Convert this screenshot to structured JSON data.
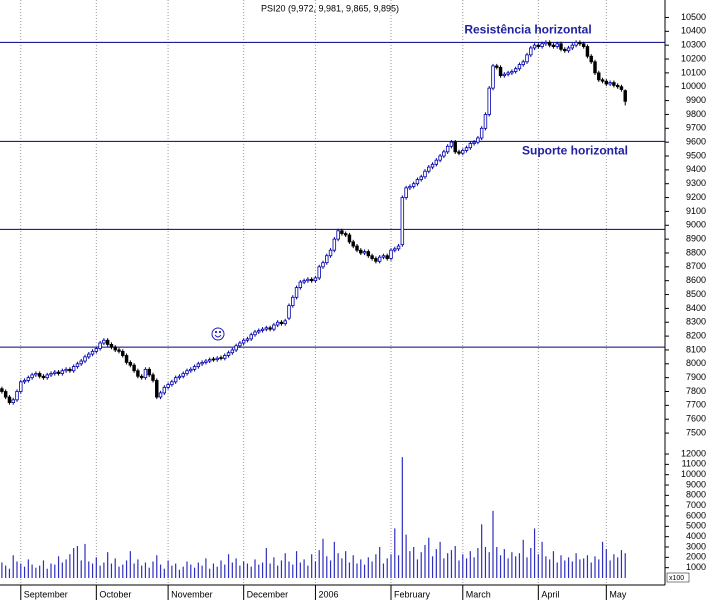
{
  "chart_data": {
    "type": "candlestick",
    "title": "PSI20 (9,972, 9,981, 9,865, 9,895)",
    "xlim": [
      -0.5,
      175
    ],
    "xticks": [
      {
        "value": 5,
        "label": "September"
      },
      {
        "value": 25,
        "label": "October"
      },
      {
        "value": 44,
        "label": "November"
      },
      {
        "value": 64,
        "label": "December"
      },
      {
        "value": 83,
        "label": "2006"
      },
      {
        "value": 103,
        "label": "February"
      },
      {
        "value": 122,
        "label": "March"
      },
      {
        "value": 142,
        "label": "April"
      },
      {
        "value": 160,
        "label": "May"
      }
    ],
    "ylim": [
      7450,
      10590
    ],
    "yticks": [
      7500,
      7600,
      7700,
      7800,
      7900,
      8000,
      8100,
      8200,
      8300,
      8400,
      8500,
      8600,
      8700,
      8800,
      8900,
      9000,
      9100,
      9200,
      9300,
      9400,
      9500,
      9600,
      9700,
      9800,
      9900,
      10000,
      10100,
      10200,
      10300,
      10400,
      10500
    ],
    "up_color": "#ffffff",
    "down_color": "#000000",
    "edge_color": "#0000aa",
    "candles": [
      [
        7820,
        7835,
        7785,
        7800
      ],
      [
        7800,
        7815,
        7745,
        7760
      ],
      [
        7760,
        7775,
        7705,
        7720
      ],
      [
        7720,
        7755,
        7705,
        7740
      ],
      [
        7740,
        7815,
        7725,
        7800
      ],
      [
        7800,
        7885,
        7785,
        7870
      ],
      [
        7870,
        7895,
        7855,
        7880
      ],
      [
        7880,
        7915,
        7865,
        7900
      ],
      [
        7900,
        7935,
        7885,
        7920
      ],
      [
        7920,
        7945,
        7905,
        7930
      ],
      [
        7930,
        7945,
        7895,
        7910
      ],
      [
        7910,
        7925,
        7885,
        7900
      ],
      [
        7900,
        7935,
        7885,
        7920
      ],
      [
        7920,
        7945,
        7905,
        7930
      ],
      [
        7930,
        7955,
        7915,
        7940
      ],
      [
        7940,
        7955,
        7915,
        7930
      ],
      [
        7930,
        7965,
        7915,
        7950
      ],
      [
        7950,
        7975,
        7935,
        7960
      ],
      [
        7960,
        7975,
        7935,
        7950
      ],
      [
        7950,
        7995,
        7935,
        7980
      ],
      [
        7980,
        8015,
        7965,
        8000
      ],
      [
        8000,
        8035,
        7985,
        8020
      ],
      [
        8020,
        8065,
        8005,
        8050
      ],
      [
        8050,
        8085,
        8035,
        8070
      ],
      [
        8070,
        8105,
        8055,
        8090
      ],
      [
        8090,
        8125,
        8075,
        8110
      ],
      [
        8110,
        8165,
        8095,
        8150
      ],
      [
        8150,
        8185,
        8135,
        8170
      ],
      [
        8170,
        8185,
        8125,
        8140
      ],
      [
        8140,
        8155,
        8105,
        8120
      ],
      [
        8120,
        8135,
        8085,
        8100
      ],
      [
        8100,
        8115,
        8075,
        8090
      ],
      [
        8090,
        8105,
        8045,
        8060
      ],
      [
        8060,
        8075,
        7995,
        8010
      ],
      [
        8010,
        8025,
        7975,
        7990
      ],
      [
        7990,
        8005,
        7935,
        7950
      ],
      [
        7950,
        7965,
        7895,
        7910
      ],
      [
        7910,
        7925,
        7885,
        7900
      ],
      [
        7900,
        7975,
        7885,
        7960
      ],
      [
        7960,
        7975,
        7905,
        7920
      ],
      [
        7920,
        7935,
        7865,
        7880
      ],
      [
        7880,
        7895,
        7745,
        7760
      ],
      [
        7760,
        7805,
        7745,
        7790
      ],
      [
        7790,
        7845,
        7775,
        7830
      ],
      [
        7830,
        7865,
        7815,
        7850
      ],
      [
        7850,
        7885,
        7835,
        7870
      ],
      [
        7870,
        7915,
        7855,
        7900
      ],
      [
        7900,
        7925,
        7885,
        7910
      ],
      [
        7910,
        7945,
        7895,
        7930
      ],
      [
        7930,
        7965,
        7915,
        7950
      ],
      [
        7950,
        7975,
        7935,
        7960
      ],
      [
        7960,
        7995,
        7945,
        7980
      ],
      [
        7980,
        8015,
        7965,
        8000
      ],
      [
        8000,
        8025,
        7985,
        8010
      ],
      [
        8010,
        8035,
        7995,
        8020
      ],
      [
        8020,
        8045,
        8005,
        8030
      ],
      [
        8035,
        8050,
        8015,
        8030
      ],
      [
        8030,
        8055,
        8015,
        8040
      ],
      [
        8045,
        8060,
        8025,
        8040
      ],
      [
        8040,
        8075,
        8025,
        8060
      ],
      [
        8060,
        8095,
        8045,
        8080
      ],
      [
        8080,
        8115,
        8065,
        8100
      ],
      [
        8100,
        8145,
        8085,
        8130
      ],
      [
        8130,
        8165,
        8115,
        8150
      ],
      [
        8150,
        8185,
        8135,
        8170
      ],
      [
        8170,
        8195,
        8155,
        8180
      ],
      [
        8180,
        8225,
        8165,
        8210
      ],
      [
        8210,
        8245,
        8195,
        8230
      ],
      [
        8230,
        8255,
        8215,
        8240
      ],
      [
        8240,
        8265,
        8225,
        8250
      ],
      [
        8250,
        8275,
        8235,
        8260
      ],
      [
        8260,
        8275,
        8235,
        8250
      ],
      [
        8250,
        8295,
        8235,
        8280
      ],
      [
        8280,
        8315,
        8265,
        8300
      ],
      [
        8300,
        8315,
        8275,
        8290
      ],
      [
        8290,
        8325,
        8275,
        8310
      ],
      [
        8330,
        8435,
        8315,
        8420
      ],
      [
        8420,
        8495,
        8405,
        8480
      ],
      [
        8480,
        8565,
        8465,
        8550
      ],
      [
        8550,
        8605,
        8535,
        8590
      ],
      [
        8590,
        8615,
        8575,
        8600
      ],
      [
        8600,
        8625,
        8585,
        8610
      ],
      [
        8610,
        8625,
        8585,
        8600
      ],
      [
        8600,
        8635,
        8585,
        8620
      ],
      [
        8620,
        8715,
        8605,
        8700
      ],
      [
        8700,
        8745,
        8685,
        8730
      ],
      [
        8730,
        8795,
        8715,
        8780
      ],
      [
        8780,
        8835,
        8765,
        8820
      ],
      [
        8820,
        8915,
        8805,
        8900
      ],
      [
        8900,
        8975,
        8885,
        8960
      ],
      [
        8960,
        8975,
        8925,
        8940
      ],
      [
        8940,
        8955,
        8915,
        8930
      ],
      [
        8930,
        8945,
        8865,
        8880
      ],
      [
        8880,
        8895,
        8835,
        8850
      ],
      [
        8850,
        8865,
        8805,
        8820
      ],
      [
        8820,
        8835,
        8785,
        8800
      ],
      [
        8800,
        8825,
        8785,
        8810
      ],
      [
        8810,
        8825,
        8765,
        8780
      ],
      [
        8780,
        8795,
        8745,
        8760
      ],
      [
        8760,
        8775,
        8725,
        8740
      ],
      [
        8740,
        8785,
        8725,
        8770
      ],
      [
        8770,
        8795,
        8755,
        8780
      ],
      [
        8780,
        8795,
        8745,
        8760
      ],
      [
        8760,
        8835,
        8745,
        8820
      ],
      [
        8820,
        8845,
        8805,
        8830
      ],
      [
        8830,
        8865,
        8815,
        8850
      ],
      [
        8860,
        9215,
        8845,
        9200
      ],
      [
        9200,
        9285,
        9185,
        9270
      ],
      [
        9270,
        9295,
        9255,
        9280
      ],
      [
        9280,
        9315,
        9265,
        9300
      ],
      [
        9300,
        9345,
        9285,
        9330
      ],
      [
        9330,
        9365,
        9315,
        9350
      ],
      [
        9350,
        9405,
        9335,
        9390
      ],
      [
        9390,
        9435,
        9375,
        9420
      ],
      [
        9420,
        9455,
        9405,
        9440
      ],
      [
        9440,
        9485,
        9425,
        9470
      ],
      [
        9470,
        9515,
        9455,
        9500
      ],
      [
        9500,
        9545,
        9485,
        9530
      ],
      [
        9530,
        9585,
        9515,
        9570
      ],
      [
        9570,
        9615,
        9555,
        9600
      ],
      [
        9600,
        9615,
        9515,
        9530
      ],
      [
        9530,
        9545,
        9505,
        9520
      ],
      [
        9520,
        9555,
        9505,
        9540
      ],
      [
        9540,
        9575,
        9525,
        9560
      ],
      [
        9560,
        9605,
        9545,
        9590
      ],
      [
        9590,
        9615,
        9575,
        9600
      ],
      [
        9600,
        9645,
        9585,
        9630
      ],
      [
        9630,
        9715,
        9615,
        9700
      ],
      [
        9700,
        9815,
        9685,
        9800
      ],
      [
        9800,
        10005,
        9785,
        9990
      ],
      [
        9990,
        10165,
        9975,
        10150
      ],
      [
        10150,
        10165,
        10125,
        10140
      ],
      [
        10140,
        10155,
        10065,
        10080
      ],
      [
        10080,
        10105,
        10065,
        10090
      ],
      [
        10090,
        10115,
        10075,
        10100
      ],
      [
        10100,
        10125,
        10085,
        10110
      ],
      [
        10110,
        10145,
        10095,
        10130
      ],
      [
        10130,
        10175,
        10115,
        10160
      ],
      [
        10160,
        10195,
        10145,
        10180
      ],
      [
        10180,
        10245,
        10165,
        10230
      ],
      [
        10230,
        10295,
        10215,
        10280
      ],
      [
        10280,
        10315,
        10265,
        10300
      ],
      [
        10300,
        10315,
        10275,
        10290
      ],
      [
        10290,
        10325,
        10275,
        10310
      ],
      [
        10310,
        10335,
        10295,
        10320
      ],
      [
        10320,
        10335,
        10285,
        10300
      ],
      [
        10300,
        10315,
        10275,
        10290
      ],
      [
        10290,
        10325,
        10275,
        10310
      ],
      [
        10310,
        10325,
        10255,
        10270
      ],
      [
        10270,
        10285,
        10245,
        10260
      ],
      [
        10260,
        10295,
        10245,
        10280
      ],
      [
        10280,
        10315,
        10265,
        10300
      ],
      [
        10300,
        10335,
        10285,
        10320
      ],
      [
        10320,
        10335,
        10295,
        10310
      ],
      [
        10310,
        10325,
        10275,
        10290
      ],
      [
        10290,
        10305,
        10205,
        10220
      ],
      [
        10220,
        10235,
        10165,
        10180
      ],
      [
        10180,
        10195,
        10085,
        10100
      ],
      [
        10100,
        10115,
        10035,
        10050
      ],
      [
        10050,
        10065,
        10025,
        10040
      ],
      [
        10040,
        10055,
        10005,
        10020
      ],
      [
        10020,
        10045,
        10005,
        10030
      ],
      [
        10030,
        10045,
        9995,
        10010
      ],
      [
        10010,
        10025,
        9985,
        10000
      ],
      [
        10000,
        10015,
        9965,
        9980
      ],
      [
        9972,
        9981,
        9865,
        9895
      ]
    ],
    "horizontal_lines": [
      10320,
      9606,
      8970,
      8120
    ],
    "line_color": "#000080",
    "annotations": [
      "Resistência horizontal",
      "Suporte horizontal"
    ],
    "volume": {
      "color": "#3030c0",
      "unit": "x100",
      "ylim": [
        0,
        12390
      ],
      "yticks": [
        1000,
        2000,
        3000,
        4000,
        5000,
        6000,
        7000,
        8000,
        9000,
        10000,
        11000,
        12000
      ],
      "values": [
        1500,
        1200,
        900,
        2200,
        1600,
        1400,
        1100,
        1800,
        1300,
        1000,
        1200,
        1700,
        900,
        1400,
        1300,
        2100,
        1500,
        1800,
        2300,
        2900,
        3100,
        1700,
        3300,
        1600,
        1400,
        2000,
        1200,
        1500,
        2500,
        1400,
        1900,
        1100,
        1300,
        1700,
        2600,
        1400,
        1800,
        1200,
        1500,
        1000,
        1600,
        2200,
        1300,
        900,
        1700,
        1200,
        1400,
        800,
        1100,
        1600,
        1300,
        1000,
        1500,
        1200,
        1900,
        900,
        1400,
        1100,
        1700,
        1300,
        2300,
        1500,
        1900,
        1200,
        1600,
        1400,
        1100,
        1800,
        1300,
        1500,
        2900,
        1400,
        2000,
        1200,
        1700,
        2400,
        1600,
        1300,
        2600,
        1500,
        1800,
        1200,
        2300,
        1600,
        2700,
        3800,
        2100,
        1700,
        3500,
        2400,
        1900,
        2600,
        1500,
        2200,
        1400,
        1800,
        1300,
        2000,
        1600,
        2300,
        3000,
        1400,
        1900,
        2300,
        4800,
        2200,
        11700,
        4200,
        2600,
        3000,
        1800,
        2500,
        3200,
        3900,
        2100,
        2800,
        3500,
        1900,
        2400,
        2700,
        3100,
        1700,
        2300,
        1900,
        2600,
        2000,
        2900,
        5200,
        3000,
        2500,
        6500,
        3000,
        2200,
        2800,
        1900,
        2500,
        2100,
        2400,
        3700,
        2000,
        2900,
        4800,
        2300,
        3500,
        2100,
        1800,
        2600,
        1500,
        2200,
        1700,
        2000,
        1600,
        2400,
        1800,
        1900,
        2200,
        1500,
        2100,
        1800,
        3500,
        2800,
        1700,
        2300,
        2000,
        2700,
        2400
      ]
    }
  }
}
